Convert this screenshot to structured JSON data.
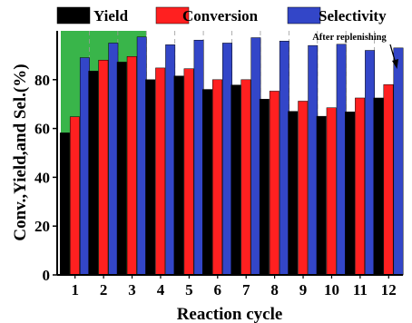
{
  "chart_data": {
    "type": "bar",
    "categories": [
      "1",
      "2",
      "3",
      "4",
      "5",
      "6",
      "7",
      "8",
      "9",
      "10",
      "11",
      "12"
    ],
    "series": [
      {
        "name": "Yield",
        "color": "#000000",
        "values": [
          58.2,
          83.5,
          87.2,
          80.0,
          81.5,
          76.0,
          77.8,
          72.0,
          67.0,
          65.0,
          66.8,
          72.5
        ]
      },
      {
        "name": "Conversion",
        "color": "#ff2020",
        "values": [
          64.8,
          88.0,
          89.5,
          84.8,
          84.5,
          80.0,
          80.0,
          75.3,
          71.2,
          68.5,
          72.5,
          78.0
        ]
      },
      {
        "name": "Selectivity",
        "color": "#3346c8",
        "values": [
          89.0,
          95.0,
          97.5,
          94.3,
          96.2,
          95.0,
          97.2,
          95.8,
          94.0,
          94.5,
          92.0,
          93.0
        ]
      }
    ],
    "xlabel": "Reaction cycle",
    "ylabel": "Conv.,Yield,and Sel.(%)",
    "ylim": [
      0,
      100
    ],
    "yticks": [
      0,
      20,
      40,
      60,
      80
    ],
    "highlight": {
      "categories": [
        "1",
        "2",
        "3"
      ],
      "color": "#39b54a"
    },
    "annotation": {
      "text": "After replenishing",
      "target_category": "12"
    },
    "legend": "top",
    "grid": "vertical dashed"
  }
}
